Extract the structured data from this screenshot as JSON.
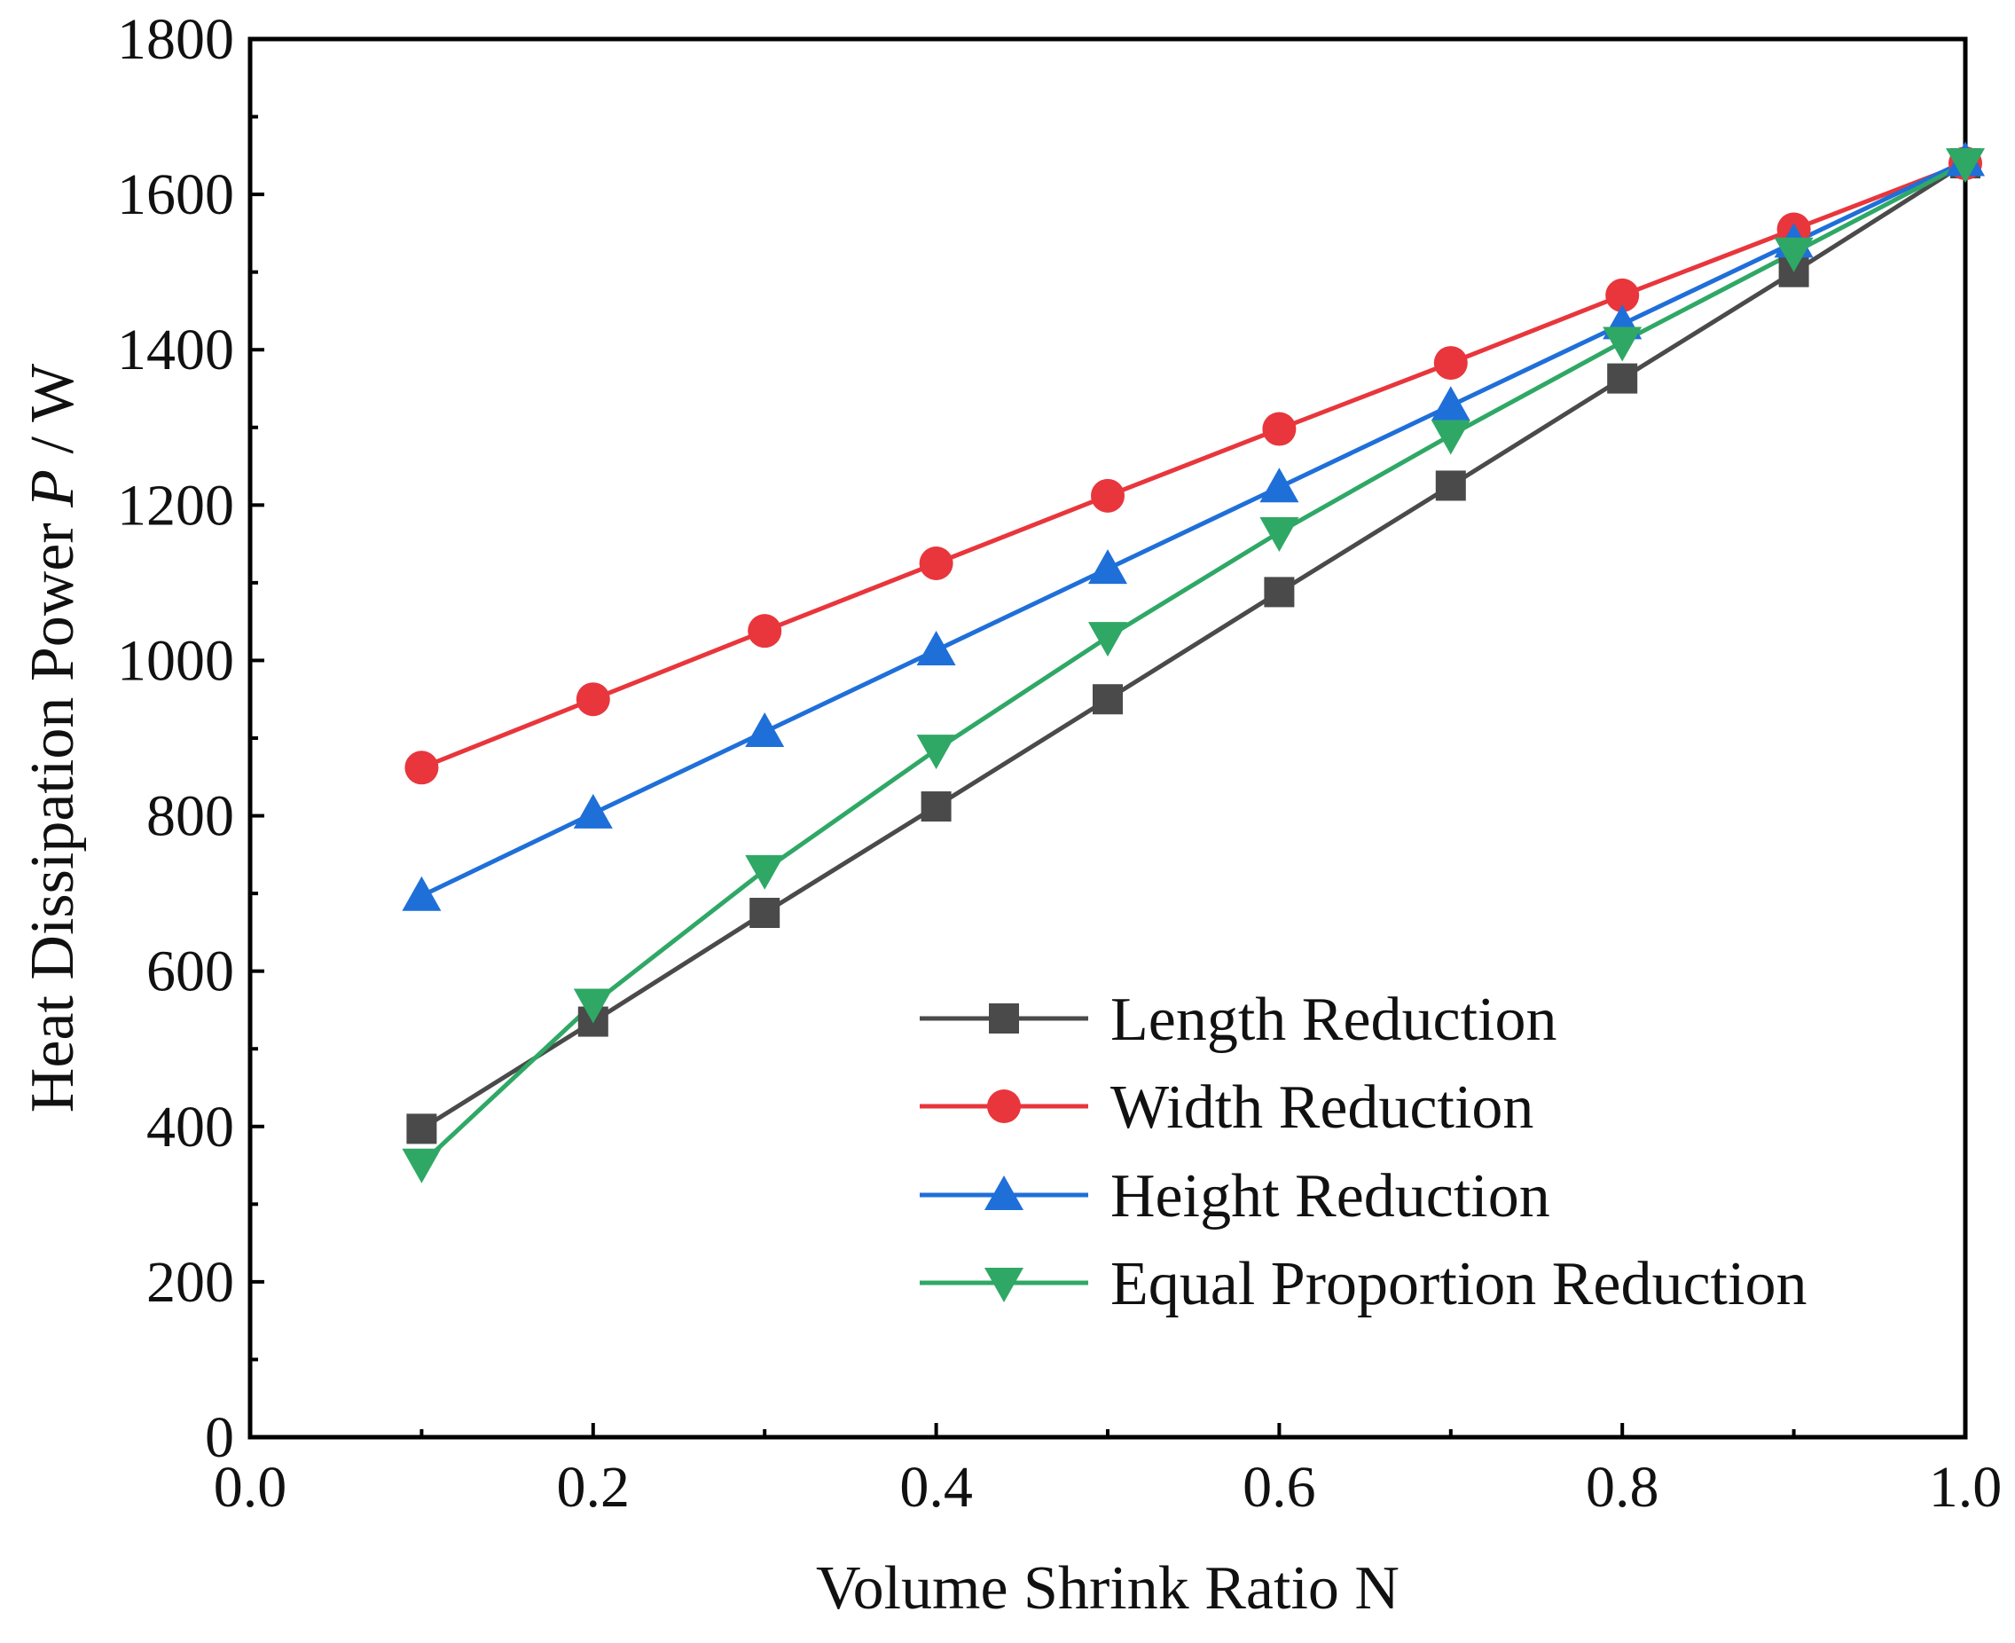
{
  "chart_data": {
    "type": "line",
    "title": "",
    "xlabel": "Volume Shrink Ratio  N",
    "ylabel_prefix": "Heat Dissipation Power  ",
    "ylabel_symbol": "P",
    "ylabel_unit": " / W",
    "xlim": [
      0.0,
      1.0
    ],
    "ylim": [
      0,
      1800
    ],
    "xticks": [
      0.0,
      0.2,
      0.4,
      0.6,
      0.8,
      1.0
    ],
    "xtick_labels": [
      "0.0",
      "0.2",
      "0.4",
      "0.6",
      "0.8",
      "1.0"
    ],
    "yticks": [
      0,
      200,
      400,
      600,
      800,
      1000,
      1200,
      1400,
      1600,
      1800
    ],
    "ytick_labels": [
      "0",
      "200",
      "400",
      "600",
      "800",
      "1000",
      "1200",
      "1400",
      "1600",
      "1800"
    ],
    "grid": false,
    "legend_position": "bottom-right",
    "x": [
      0.1,
      0.2,
      0.3,
      0.4,
      0.5,
      0.6,
      0.7,
      0.8,
      0.9,
      1.0
    ],
    "series": [
      {
        "name": "Length Reduction",
        "color": "#4a4a4a",
        "marker": "square",
        "values": [
          397,
          535,
          675,
          812,
          950,
          1088,
          1225,
          1363,
          1500,
          1640
        ]
      },
      {
        "name": "Width Reduction",
        "color": "#e8363c",
        "marker": "circle",
        "values": [
          862,
          950,
          1038,
          1125,
          1212,
          1298,
          1383,
          1470,
          1555,
          1640
        ]
      },
      {
        "name": "Height Reduction",
        "color": "#1f6fd9",
        "marker": "triangle-up",
        "values": [
          697,
          803,
          908,
          1013,
          1118,
          1223,
          1328,
          1433,
          1538,
          1643
        ]
      },
      {
        "name": "Equal Proportion Reduction",
        "color": "#2fa866",
        "marker": "triangle-down",
        "values": [
          352,
          558,
          730,
          885,
          1030,
          1165,
          1290,
          1410,
          1525,
          1640
        ]
      }
    ]
  }
}
